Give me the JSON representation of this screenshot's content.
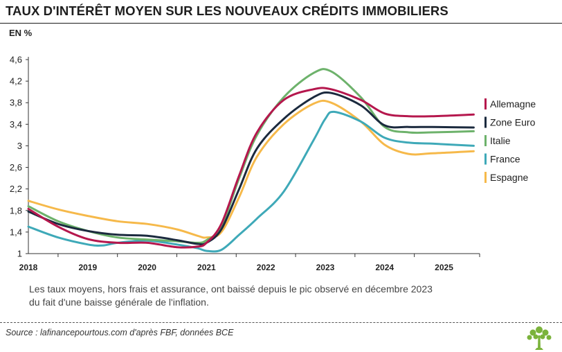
{
  "header": {
    "title": "TAUX D'INTÉRÊT MOYEN SUR LES NOUVEAUX CRÉDITS IMMOBILIERS",
    "unit": "EN %"
  },
  "note": {
    "line1": "Les taux moyens, hors frais et assurance, ont baissé depuis le pic observé en décembre 2023",
    "line2": "du fait d'une baisse générale de l'inflation."
  },
  "source": "Source : lafinancepourtous.com d'après FBF, données BCE",
  "logo": {
    "icon": "tree-logo-icon",
    "color": "#7bb33c"
  },
  "chart_data": {
    "type": "line",
    "title": "TAUX D'INTÉRÊT MOYEN SUR LES NOUVEAUX CRÉDITS IMMOBILIERS",
    "ylabel": "EN %",
    "xlabel": "",
    "ylim": [
      1,
      4.6
    ],
    "yticks": [
      1,
      1.4,
      1.8,
      2.2,
      2.6,
      3,
      3.4,
      3.8,
      4.2,
      4.6
    ],
    "ytick_labels": [
      "1",
      "1,4",
      "1,8",
      "2,2",
      "2,6",
      "3",
      "3,4",
      "3,8",
      "4,2",
      "4,6"
    ],
    "xlim": [
      2018,
      2025.6
    ],
    "xticks": [
      2018,
      2019,
      2020,
      2021,
      2022,
      2023,
      2024,
      2025
    ],
    "grid": false,
    "legend_position": "right",
    "series": [
      {
        "name": "Allemagne",
        "color": "#b5174d",
        "points": [
          [
            2018,
            1.83
          ],
          [
            2018.5,
            1.5
          ],
          [
            2019,
            1.27
          ],
          [
            2019.5,
            1.2
          ],
          [
            2020,
            1.2
          ],
          [
            2020.5,
            1.12
          ],
          [
            2020.85,
            1.13
          ],
          [
            2021,
            1.2
          ],
          [
            2021.25,
            1.55
          ],
          [
            2021.55,
            2.45
          ],
          [
            2021.85,
            3.25
          ],
          [
            2022.3,
            3.85
          ],
          [
            2022.8,
            4.05
          ],
          [
            2023.1,
            4.05
          ],
          [
            2023.6,
            3.85
          ],
          [
            2024,
            3.6
          ],
          [
            2024.4,
            3.55
          ],
          [
            2024.8,
            3.55
          ],
          [
            2025.5,
            3.58
          ]
        ]
      },
      {
        "name": "Zone Euro",
        "color": "#1b2a3e",
        "points": [
          [
            2018,
            1.78
          ],
          [
            2018.5,
            1.55
          ],
          [
            2019,
            1.42
          ],
          [
            2019.5,
            1.35
          ],
          [
            2020,
            1.33
          ],
          [
            2020.5,
            1.25
          ],
          [
            2020.85,
            1.18
          ],
          [
            2021,
            1.2
          ],
          [
            2021.25,
            1.45
          ],
          [
            2021.55,
            2.2
          ],
          [
            2021.85,
            2.95
          ],
          [
            2022.3,
            3.5
          ],
          [
            2022.8,
            3.9
          ],
          [
            2023.1,
            3.98
          ],
          [
            2023.6,
            3.75
          ],
          [
            2024,
            3.38
          ],
          [
            2024.4,
            3.35
          ],
          [
            2024.8,
            3.35
          ],
          [
            2025.5,
            3.34
          ]
        ]
      },
      {
        "name": "Italie",
        "color": "#6db26b",
        "points": [
          [
            2018,
            1.88
          ],
          [
            2018.5,
            1.6
          ],
          [
            2019,
            1.42
          ],
          [
            2019.5,
            1.3
          ],
          [
            2020,
            1.26
          ],
          [
            2020.5,
            1.23
          ],
          [
            2020.85,
            1.2
          ],
          [
            2021,
            1.25
          ],
          [
            2021.25,
            1.5
          ],
          [
            2021.55,
            2.4
          ],
          [
            2021.85,
            3.2
          ],
          [
            2022.3,
            3.9
          ],
          [
            2022.8,
            4.35
          ],
          [
            2023.1,
            4.38
          ],
          [
            2023.6,
            3.9
          ],
          [
            2024,
            3.35
          ],
          [
            2024.4,
            3.25
          ],
          [
            2024.8,
            3.25
          ],
          [
            2025.5,
            3.27
          ]
        ]
      },
      {
        "name": "France",
        "color": "#3ea9b8",
        "points": [
          [
            2018,
            1.5
          ],
          [
            2018.5,
            1.3
          ],
          [
            2019,
            1.17
          ],
          [
            2019.25,
            1.15
          ],
          [
            2019.5,
            1.2
          ],
          [
            2020,
            1.24
          ],
          [
            2020.5,
            1.17
          ],
          [
            2020.85,
            1.1
          ],
          [
            2021,
            1.05
          ],
          [
            2021.25,
            1.07
          ],
          [
            2021.55,
            1.35
          ],
          [
            2021.85,
            1.65
          ],
          [
            2022.3,
            2.15
          ],
          [
            2022.8,
            3.1
          ],
          [
            2023,
            3.5
          ],
          [
            2023.15,
            3.63
          ],
          [
            2023.6,
            3.45
          ],
          [
            2024,
            3.15
          ],
          [
            2024.4,
            3.06
          ],
          [
            2024.8,
            3.04
          ],
          [
            2025.5,
            3.0
          ]
        ]
      },
      {
        "name": "Espagne",
        "color": "#f6b94a",
        "points": [
          [
            2018,
            1.98
          ],
          [
            2018.5,
            1.82
          ],
          [
            2019,
            1.7
          ],
          [
            2019.5,
            1.6
          ],
          [
            2020,
            1.55
          ],
          [
            2020.5,
            1.45
          ],
          [
            2020.85,
            1.33
          ],
          [
            2021,
            1.3
          ],
          [
            2021.25,
            1.4
          ],
          [
            2021.55,
            2.05
          ],
          [
            2021.85,
            2.8
          ],
          [
            2022.3,
            3.4
          ],
          [
            2022.8,
            3.78
          ],
          [
            2023.1,
            3.8
          ],
          [
            2023.6,
            3.45
          ],
          [
            2024,
            3.02
          ],
          [
            2024.4,
            2.85
          ],
          [
            2024.8,
            2.86
          ],
          [
            2025.5,
            2.9
          ]
        ]
      }
    ]
  }
}
